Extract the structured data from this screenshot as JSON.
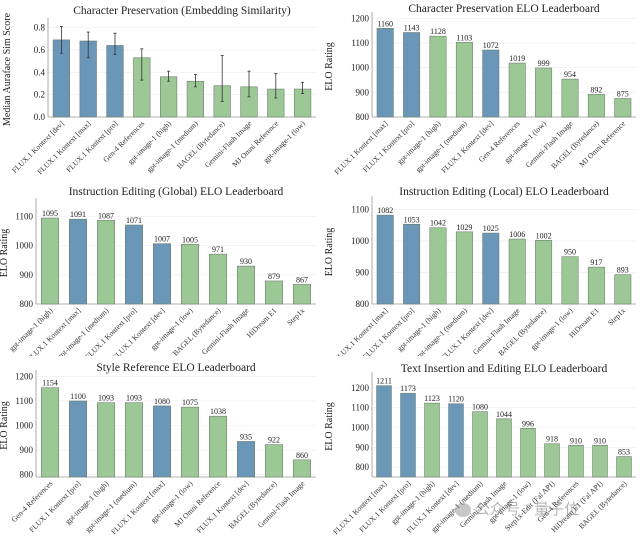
{
  "colors": {
    "flux": "#6a97b8",
    "other": "#9cc896"
  },
  "watermark": {
    "text": "公众号 · 量子位",
    "icon": "wechat-icon"
  },
  "chart_data": [
    {
      "type": "bar",
      "title": "Character Preservation (Embedding Similarity)",
      "xlabel": "",
      "ylabel": "Median Auraface Sim Score",
      "ylim": [
        0,
        0.85
      ],
      "yticks": [
        0.0,
        0.2,
        0.4,
        0.6,
        0.8
      ],
      "ytick_labels": [
        "0.0",
        "0.2",
        "0.4",
        "0.6",
        "0.8"
      ],
      "categories": [
        "FLUX.1 Kontext [dev]",
        "FLUX.1 Kontext [max]",
        "FLUX.1 Kontext [pro]",
        "Gen-4 References",
        "gpt-image-1 (high)",
        "gpt-image-1 (medium)",
        "BAGEL (Bytedance)",
        "Gemini-Flash Image",
        "MJ Omni Reference",
        "gpt-image-1 (low)"
      ],
      "values": [
        0.69,
        0.68,
        0.64,
        0.53,
        0.36,
        0.32,
        0.28,
        0.27,
        0.25,
        0.25
      ],
      "error_low": [
        0.57,
        0.53,
        0.56,
        0.33,
        0.32,
        0.27,
        0.14,
        0.18,
        0.17,
        0.21
      ],
      "error_high": [
        0.81,
        0.76,
        0.75,
        0.61,
        0.41,
        0.38,
        0.55,
        0.41,
        0.39,
        0.31
      ],
      "is_flux": [
        true,
        true,
        true,
        false,
        false,
        false,
        false,
        false,
        false,
        false
      ],
      "show_value_labels": false,
      "grid": true
    },
    {
      "type": "bar",
      "title": "Character Preservation ELO Leaderboard",
      "xlabel": "",
      "ylabel": "ELO Rating",
      "ylim": [
        800,
        1210
      ],
      "yticks": [
        800,
        900,
        1000,
        1100,
        1200
      ],
      "ytick_labels": [
        "800",
        "900",
        "1000",
        "1100",
        "1200"
      ],
      "categories": [
        "FLUX.1 Kontext [max]",
        "FLUX.1 Kontext [pro]",
        "gpt-image-1 (high)",
        "gpt-image-1 (medium)",
        "FLUX.1 Kontext [dev]",
        "Gen-4 References",
        "gpt-image-1 (low)",
        "Gemini-Flash Image",
        "BAGEL (Bytedance)",
        "MJ Omni Reference"
      ],
      "values": [
        1160,
        1143,
        1128,
        1103,
        1072,
        1019,
        999,
        954,
        892,
        875
      ],
      "is_flux": [
        true,
        true,
        false,
        false,
        true,
        false,
        false,
        false,
        false,
        false
      ],
      "show_value_labels": true,
      "grid": true
    },
    {
      "type": "bar",
      "title": "Instruction Editing (Global) ELO Leaderboard",
      "xlabel": "",
      "ylabel": "ELO Rating",
      "ylim": [
        800,
        1150
      ],
      "yticks": [
        800,
        900,
        1000,
        1100
      ],
      "ytick_labels": [
        "800",
        "900",
        "1000",
        "1100"
      ],
      "categories": [
        "gpt-image-1 (high)",
        "FLUX.1 Kontext [max]",
        "gpt-image-1 (medium)",
        "FLUX.1 Kontext [pro]",
        "FLUX.1 Kontext [dev]",
        "gpt-image-1 (low)",
        "BAGEL (Bytedance)",
        "Gemini-Flash Image",
        "HiDream E1",
        "Step1x"
      ],
      "values": [
        1095,
        1091,
        1087,
        1071,
        1007,
        1005,
        971,
        930,
        879,
        867
      ],
      "is_flux": [
        false,
        true,
        false,
        true,
        true,
        false,
        false,
        false,
        false,
        false
      ],
      "show_value_labels": true,
      "grid": true
    },
    {
      "type": "bar",
      "title": "Instruction Editing (Local) ELO Leaderboard",
      "xlabel": "",
      "ylabel": "ELO Rating",
      "ylim": [
        800,
        1130
      ],
      "yticks": [
        800,
        900,
        1000,
        1100
      ],
      "ytick_labels": [
        "800",
        "900",
        "1000",
        "1100"
      ],
      "categories": [
        "FLUX.1 Kontext [max]",
        "FLUX.1 Kontext [pro]",
        "gpt-image-1 (high)",
        "gpt-image-1 (medium)",
        "FLUX.1 Kontext [dev]",
        "Gemini-Flash Image",
        "BAGEL (Bytedance)",
        "gpt-image-1 (low)",
        "HiDream E1",
        "Step1x"
      ],
      "values": [
        1082,
        1053,
        1042,
        1029,
        1025,
        1006,
        1002,
        950,
        917,
        893
      ],
      "is_flux": [
        true,
        true,
        false,
        false,
        true,
        false,
        false,
        false,
        false,
        false
      ],
      "show_value_labels": true,
      "grid": true
    },
    {
      "type": "bar",
      "title": "Style Reference ELO Leaderboard",
      "xlabel": "",
      "ylabel": "ELO Rating",
      "ylim": [
        790,
        1210
      ],
      "yticks": [
        800,
        900,
        1000,
        1100,
        1200
      ],
      "ytick_labels": [
        "800",
        "900",
        "1000",
        "1100",
        "1200"
      ],
      "categories": [
        "Gen-4 References",
        "FLUX.1 Kontext [pro]",
        "gpt-image-1 (high)",
        "gpt-image-1 (medium)",
        "FLUX.1 Kontext [max]",
        "gpt-image-1 (low)",
        "MJ Omni Reference",
        "FLUX.1 Kontext [dev]",
        "BAGEL (Bytedance)",
        "Gemini-Flash Image"
      ],
      "values": [
        1154,
        1100,
        1093,
        1093,
        1080,
        1075,
        1038,
        935,
        922,
        860
      ],
      "is_flux": [
        false,
        true,
        false,
        false,
        true,
        false,
        false,
        true,
        false,
        false
      ],
      "show_value_labels": true,
      "grid": true
    },
    {
      "type": "bar",
      "title": "Text Insertion and Editing ELO Leaderboard",
      "xlabel": "",
      "ylabel": "ELO Rating",
      "ylim": [
        750,
        1260
      ],
      "yticks": [
        800,
        900,
        1000,
        1100,
        1200
      ],
      "ytick_labels": [
        "800",
        "900",
        "1000",
        "1100",
        "1200"
      ],
      "categories": [
        "FLUX.1 Kontext [max]",
        "FLUX.1 Kontext [pro]",
        "gpt-image-1 (high)",
        "FLUX.1 Kontext [dev]",
        "gpt-image-1 (medium)",
        "Gemini-Flash Image",
        "gpt-image-1 (low)",
        "Step1x-Edit (Fal API)",
        "Gen-4 References",
        "HiDream E1 (Fal API)",
        "BAGEL (Bytedance)"
      ],
      "values": [
        1211,
        1173,
        1123,
        1120,
        1080,
        1044,
        996,
        918,
        910,
        910,
        853
      ],
      "is_flux": [
        true,
        true,
        false,
        true,
        false,
        false,
        false,
        false,
        false,
        false,
        false
      ],
      "show_value_labels": true,
      "grid": true
    }
  ]
}
